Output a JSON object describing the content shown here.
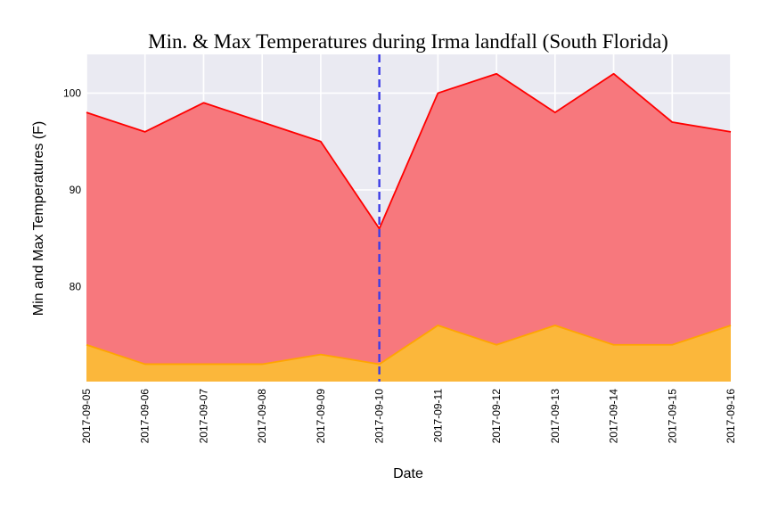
{
  "chart_data": {
    "type": "area",
    "title": "Min. & Max Temperatures during Irma landfall (South Florida)",
    "xlabel": "Date",
    "ylabel": "Min and Max Temperatures (F)",
    "x": [
      "2017-09-05",
      "2017-09-06",
      "2017-09-07",
      "2017-09-08",
      "2017-09-09",
      "2017-09-10",
      "2017-09-11",
      "2017-09-12",
      "2017-09-13",
      "2017-09-14",
      "2017-09-15",
      "2017-09-16"
    ],
    "series": [
      {
        "values": [
          98,
          96,
          99,
          97,
          95,
          86,
          100,
          102,
          98,
          102,
          97,
          96
        ],
        "line_color": "#ff0000",
        "fill_color": "#f7787d"
      },
      {
        "values": [
          74,
          72,
          72,
          72,
          73,
          72,
          76,
          74,
          76,
          74,
          74,
          76
        ],
        "line_color": "#ffa500",
        "fill_color": "#fbb73b"
      }
    ],
    "ylim": [
      70.2,
      104
    ],
    "yticks": [
      80,
      90,
      100
    ],
    "ytick_labels": [
      "80",
      "90",
      "100"
    ],
    "grid": true,
    "grid_color": "#ffffff",
    "background": "#eaeaf2",
    "vline": {
      "x": "2017-09-10",
      "color": "#3d3de6",
      "style": "dashed"
    }
  }
}
